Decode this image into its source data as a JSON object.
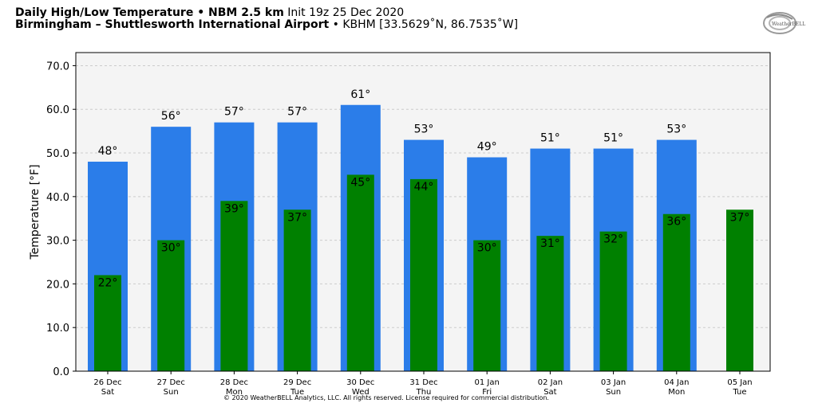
{
  "header": {
    "title_bold": "Daily High/Low Temperature • NBM 2.5 km",
    "init": "Init 19z 25 Dec 2020",
    "station_bold": "Birmingham – Shuttlesworth International Airport",
    "station_rest": "• KBHM [33.5629˚N, 86.7535˚W]"
  },
  "logo": {
    "text": "WeatherBELL",
    "icon": "weatherbell-logo"
  },
  "copyright": "© 2020 WeatherBELL Analytics, LLC. All rights reserved. License required for commercial distribution.",
  "colors": {
    "high": "#2b7de9",
    "low": "#008000",
    "plot_bg": "#f4f4f4",
    "grid": "#cccccc"
  },
  "chart_data": {
    "type": "bar",
    "ylabel": "Temperature [°F]",
    "ylim": [
      0,
      73
    ],
    "yticks": [
      "0.0",
      "10.0",
      "20.0",
      "30.0",
      "40.0",
      "50.0",
      "60.0",
      "70.0"
    ],
    "grid": true,
    "categories": [
      {
        "date": "26 Dec",
        "day": "Sat"
      },
      {
        "date": "27 Dec",
        "day": "Sun"
      },
      {
        "date": "28 Dec",
        "day": "Mon"
      },
      {
        "date": "29 Dec",
        "day": "Tue"
      },
      {
        "date": "30 Dec",
        "day": "Wed"
      },
      {
        "date": "31 Dec",
        "day": "Thu"
      },
      {
        "date": "01 Jan",
        "day": "Fri"
      },
      {
        "date": "02 Jan",
        "day": "Sat"
      },
      {
        "date": "03 Jan",
        "day": "Sun"
      },
      {
        "date": "04 Jan",
        "day": "Mon"
      },
      {
        "date": "05 Jan",
        "day": "Tue"
      }
    ],
    "series": [
      {
        "key": "high",
        "values": [
          48,
          56,
          57,
          57,
          61,
          53,
          49,
          51,
          51,
          53,
          null
        ],
        "labels": [
          "48°",
          "56°",
          "57°",
          "57°",
          "61°",
          "53°",
          "49°",
          "51°",
          "51°",
          "53°",
          null
        ]
      },
      {
        "key": "low",
        "values": [
          22,
          30,
          39,
          37,
          45,
          44,
          30,
          31,
          32,
          36,
          37
        ],
        "labels": [
          "22°",
          "30°",
          "39°",
          "37°",
          "45°",
          "44°",
          "30°",
          "31°",
          "32°",
          "36°",
          "37°"
        ]
      }
    ]
  }
}
